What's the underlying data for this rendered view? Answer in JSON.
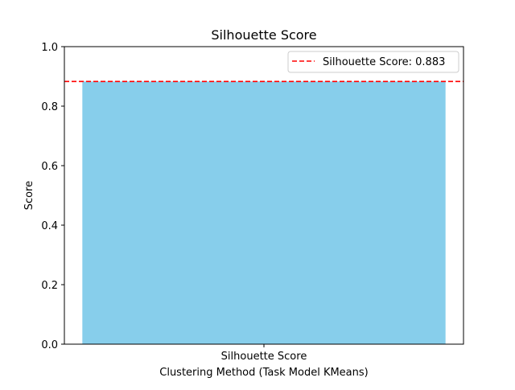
{
  "chart_data": {
    "type": "bar",
    "title": "Silhouette Score",
    "xlabel": "Clustering Method (Task Model KMeans)",
    "ylabel": "Score",
    "categories": [
      "Silhouette Score"
    ],
    "values": [
      0.883
    ],
    "ylim": [
      0,
      1.0
    ],
    "yticks": [
      "0.0",
      "0.2",
      "0.4",
      "0.6",
      "0.8",
      "1.0"
    ],
    "reference_line": {
      "value": 0.883,
      "style": "dashed",
      "color": "#ff0000"
    },
    "legend": {
      "placement": "top-right",
      "entries": [
        "Silhouette Score: 0.883"
      ]
    },
    "grid": false,
    "bar_color": "#87ceeb"
  }
}
